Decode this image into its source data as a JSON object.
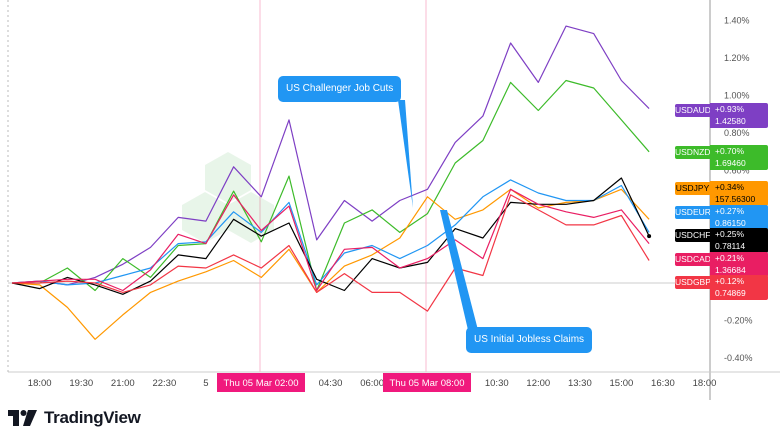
{
  "chart_data": {
    "type": "line",
    "x": [
      "17:00",
      "18:00",
      "19:00",
      "20:00",
      "21:00",
      "22:00",
      "23:00",
      "00:00",
      "01:00",
      "02:00",
      "03:00",
      "04:00",
      "05:00",
      "06:00",
      "07:00",
      "08:00",
      "09:00",
      "10:00",
      "11:00",
      "12:00",
      "13:00",
      "14:00",
      "15:00",
      "16:00"
    ],
    "ylabel_unit": "%",
    "ylim": [
      -0.45,
      1.5
    ],
    "y_ticks": [
      "1.40%",
      "1.20%",
      "1.00%",
      "0.80%",
      "0.60%",
      "-0.20%",
      "-0.40%"
    ],
    "x_ticks": [
      "18:00",
      "19:30",
      "21:00",
      "22:30",
      "5",
      "04:30",
      "06:00",
      "10:30",
      "12:00",
      "13:30",
      "15:00",
      "16:30",
      "18:00"
    ],
    "x_highlights": [
      "Thu 05 Mar   02:00",
      "Thu 05 Mar   08:00"
    ],
    "grid": false,
    "series": [
      {
        "name": "USDAUD",
        "color": "#7e3fc4",
        "change": "+0.93%",
        "price": "1.42580",
        "values": [
          0,
          0.01,
          -0.01,
          0.03,
          0.1,
          0.19,
          0.35,
          0.33,
          0.62,
          0.46,
          0.87,
          0.23,
          0.44,
          0.33,
          0.44,
          0.5,
          0.75,
          0.89,
          1.28,
          1.07,
          1.37,
          1.33,
          1.08,
          0.93
        ]
      },
      {
        "name": "USDNZD",
        "color": "#3dbb2a",
        "change": "+0.70%",
        "price": "1.69460",
        "values": [
          0,
          0,
          0.08,
          -0.04,
          0.13,
          0.03,
          0.2,
          0.21,
          0.49,
          0.22,
          0.57,
          -0.04,
          0.32,
          0.39,
          0.27,
          0.37,
          0.64,
          0.76,
          1.07,
          0.92,
          1.08,
          1.04,
          0.87,
          0.7
        ]
      },
      {
        "name": "USDJPY",
        "color": "#ff9800",
        "change": "+0.34%",
        "price": "157.56300",
        "values": [
          0,
          -0.01,
          -0.13,
          -0.3,
          -0.17,
          -0.05,
          0.01,
          0.06,
          0.12,
          0.03,
          0.18,
          -0.05,
          0.09,
          0.15,
          0.24,
          0.46,
          0.34,
          0.39,
          0.5,
          0.4,
          0.43,
          0.44,
          0.5,
          0.34
        ]
      },
      {
        "name": "USDEUR",
        "color": "#2196f3",
        "change": "+0.27%",
        "price": "0.86150",
        "values": [
          0,
          0.01,
          -0.01,
          0,
          0.04,
          0.08,
          0.21,
          0.22,
          0.38,
          0.27,
          0.43,
          -0.01,
          0.16,
          0.2,
          0.13,
          0.2,
          0.31,
          0.46,
          0.55,
          0.48,
          0.44,
          0.44,
          0.52,
          0.27
        ]
      },
      {
        "name": "USDCHF",
        "color": "#000000",
        "change": "+0.25%",
        "price": "0.78114",
        "values": [
          0,
          -0.03,
          0.03,
          -0.01,
          -0.06,
          0.01,
          0.15,
          0.13,
          0.34,
          0.25,
          0.32,
          0.02,
          -0.04,
          0.13,
          0.08,
          0.11,
          0.29,
          0.24,
          0.43,
          0.42,
          0.42,
          0.44,
          0.56,
          0.25
        ]
      },
      {
        "name": "USDCAD",
        "color": "#e91e63",
        "change": "+0.21%",
        "price": "1.36684",
        "values": [
          0,
          0.01,
          0.02,
          0.02,
          -0.04,
          0.07,
          0.26,
          0.21,
          0.47,
          0.28,
          0.41,
          -0.04,
          0.18,
          0.19,
          0.08,
          0.13,
          0.23,
          0.13,
          0.5,
          0.42,
          0.38,
          0.35,
          0.39,
          0.21
        ]
      },
      {
        "name": "USDGBP",
        "color": "#f23645",
        "change": "+0.12%",
        "price": "0.74869",
        "values": [
          0,
          0,
          0.01,
          0,
          -0.05,
          -0.01,
          0.09,
          0.08,
          0.15,
          0.08,
          0.2,
          -0.05,
          0.05,
          -0.05,
          -0.05,
          -0.15,
          0.08,
          0.04,
          0.47,
          0.39,
          0.31,
          0.31,
          0.36,
          0.12
        ]
      }
    ],
    "annotations": [
      "US Challenger Job Cuts",
      "US Initial Jobless Claims"
    ]
  },
  "highlight_color": "#f0197d",
  "callout_color": "#2196f3",
  "logo": "TradingView"
}
